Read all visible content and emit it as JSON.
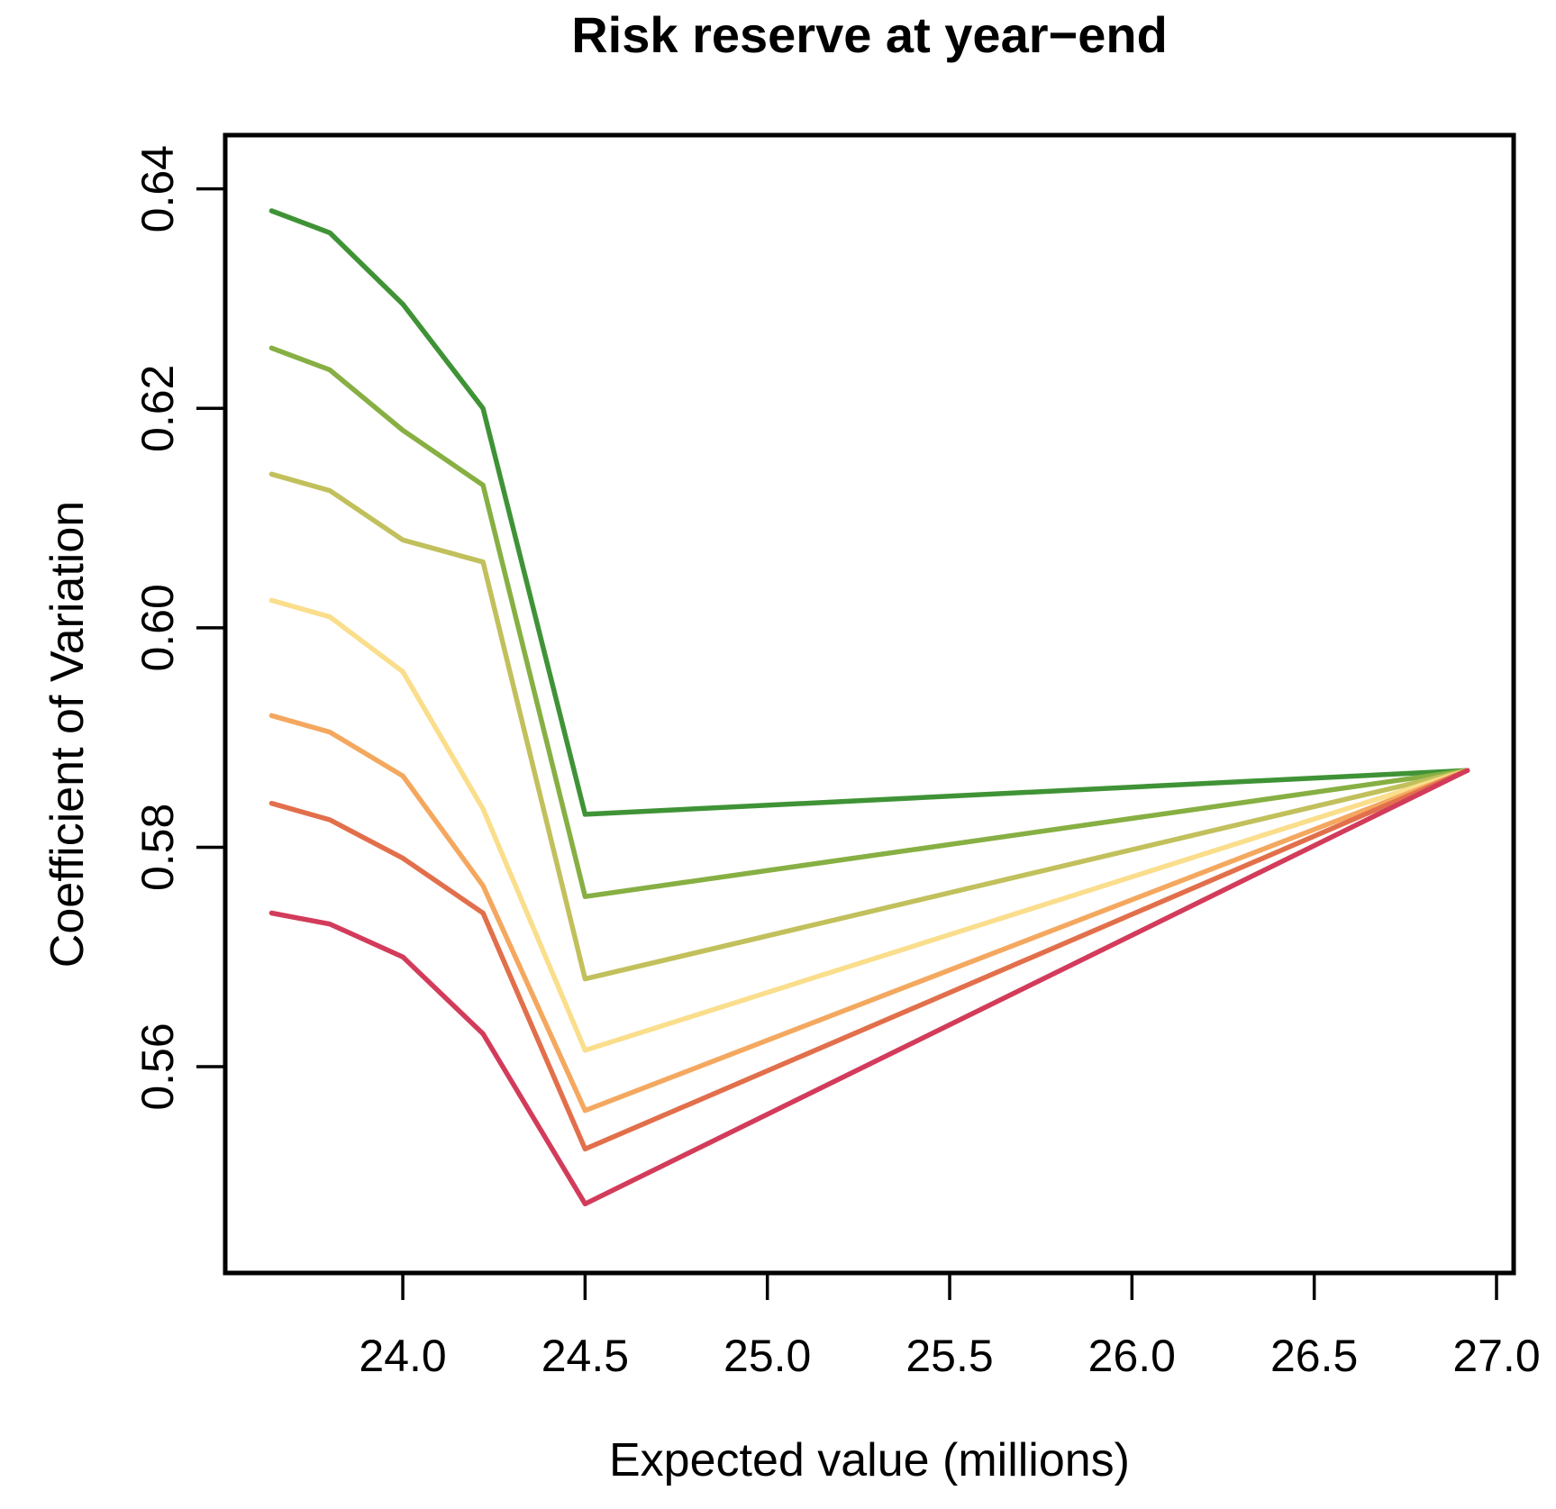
{
  "chart_data": {
    "type": "line",
    "title": "Risk reserve at year−end",
    "xlabel": "Expected value (millions)",
    "ylabel": "Coefficient of Variation",
    "grid": false,
    "legend": "none",
    "background_color": "#ffffff",
    "axis_color": "#000000",
    "xlim": [
      23.513,
      27.047
    ],
    "ylim": [
      0.5412,
      0.6449
    ],
    "x_ticks": [
      24.0,
      24.5,
      25.0,
      25.5,
      26.0,
      26.5,
      27.0
    ],
    "x_tick_labels": [
      "24.0",
      "24.5",
      "25.0",
      "25.5",
      "26.0",
      "26.5",
      "27.0"
    ],
    "y_ticks": [
      0.56,
      0.58,
      0.6,
      0.62,
      0.64
    ],
    "y_tick_labels": [
      "0.56",
      "0.58",
      "0.60",
      "0.62",
      "0.64"
    ],
    "x": [
      23.64,
      23.8,
      24.0,
      24.22,
      24.5,
      26.92
    ],
    "series": [
      {
        "name": "line-1",
        "color": "#3F9336",
        "values": [
          0.638,
          0.636,
          0.6295,
          0.62,
          0.583,
          0.587
        ]
      },
      {
        "name": "line-2",
        "color": "#87AF43",
        "values": [
          0.6255,
          0.6235,
          0.618,
          0.613,
          0.5755,
          0.587
        ]
      },
      {
        "name": "line-3",
        "color": "#C1C05C",
        "values": [
          0.614,
          0.6125,
          0.608,
          0.606,
          0.568,
          0.587
        ]
      },
      {
        "name": "line-4",
        "color": "#FADE8C",
        "values": [
          0.6025,
          0.601,
          0.596,
          0.5835,
          0.5615,
          0.587
        ]
      },
      {
        "name": "line-5",
        "color": "#F4A85F",
        "values": [
          0.592,
          0.5905,
          0.5865,
          0.5765,
          0.556,
          0.587
        ]
      },
      {
        "name": "line-6",
        "color": "#E26F4B",
        "values": [
          0.584,
          0.5825,
          0.579,
          0.574,
          0.5525,
          0.587
        ]
      },
      {
        "name": "line-7",
        "color": "#D23C5A",
        "values": [
          0.574,
          0.573,
          0.57,
          0.563,
          0.5475,
          0.587
        ]
      }
    ],
    "converge_point": {
      "x": 26.92,
      "y": 0.587
    }
  }
}
